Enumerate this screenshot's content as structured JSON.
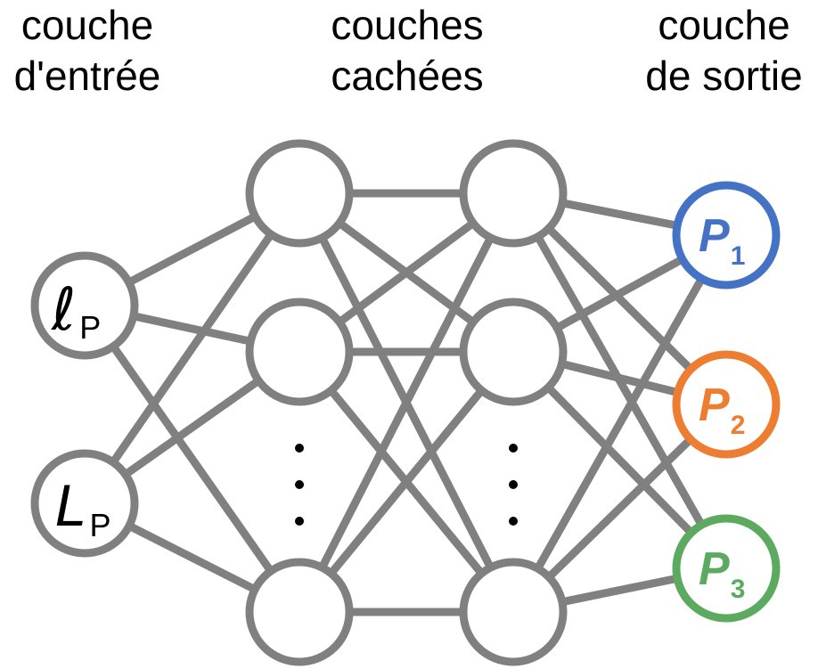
{
  "headers": {
    "input": [
      "couche",
      "d'entrée"
    ],
    "hidden": [
      "couches",
      "cachées"
    ],
    "output": [
      "couche",
      "de sortie"
    ]
  },
  "input_nodes": [
    {
      "main": "ℓ",
      "sub": "P"
    },
    {
      "main": "L",
      "sub": "P"
    }
  ],
  "output_nodes": [
    {
      "main": "P",
      "sub": "1",
      "color": "#4472C4"
    },
    {
      "main": "P",
      "sub": "2",
      "color": "#ED7D31"
    },
    {
      "main": "P",
      "sub": "3",
      "color": "#5BAA5F"
    }
  ],
  "colors": {
    "edge": "#808080",
    "node_stroke": "#808080",
    "node_fill": "#ffffff"
  }
}
